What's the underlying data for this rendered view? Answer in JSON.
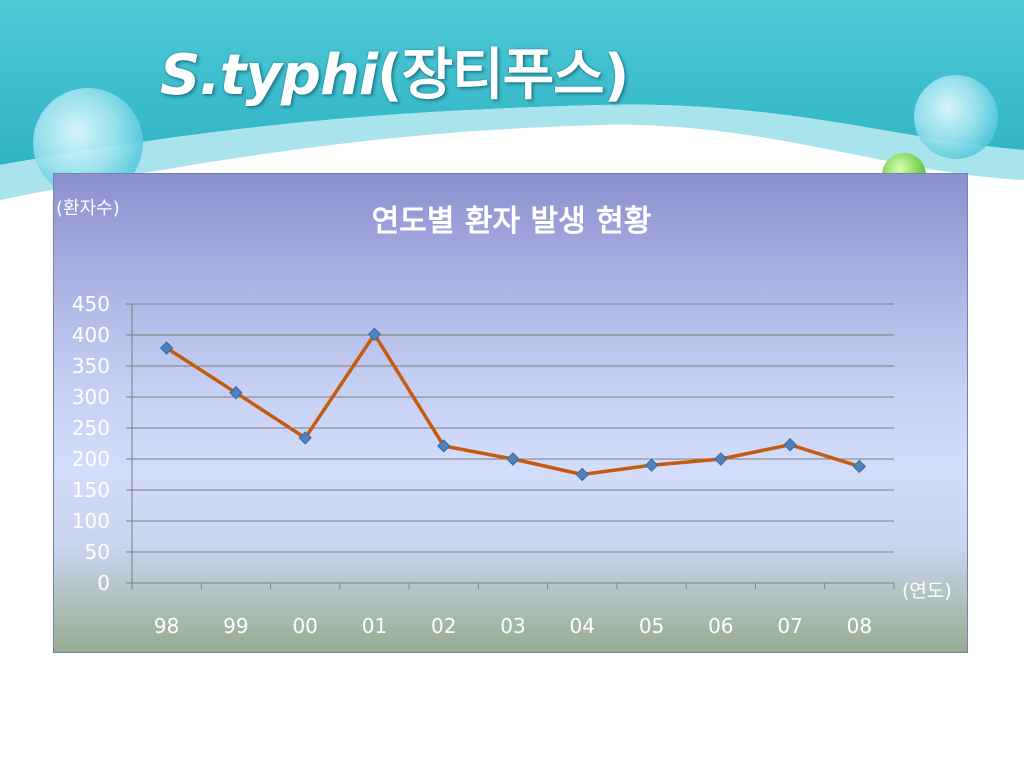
{
  "slide": {
    "title_italic": "S.typhi",
    "title_rest": "(장티푸스)"
  },
  "colors": {
    "header_teal": "#3fbfcf",
    "line": "#c55a11",
    "marker": "#4f81bd",
    "grid": "#7f7f7f"
  },
  "chart_data": {
    "type": "line",
    "title": "연도별 환자 발생 현황",
    "ylabel": "(환자수)",
    "xlabel": "(연도)",
    "categories": [
      "98",
      "99",
      "00",
      "01",
      "02",
      "03",
      "04",
      "05",
      "06",
      "07",
      "08"
    ],
    "values": [
      379,
      307,
      234,
      401,
      221,
      200,
      175,
      190,
      200,
      223,
      188
    ],
    "ylim": [
      0,
      450
    ],
    "yticks": [
      0,
      50,
      100,
      150,
      200,
      250,
      300,
      350,
      400,
      450
    ],
    "grid": true,
    "legend": "none"
  }
}
